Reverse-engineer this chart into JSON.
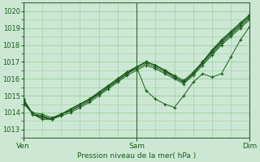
{
  "xlabel": "Pression niveau de la mer( hPa )",
  "bg_color": "#cce8d4",
  "plot_bg_color": "#cce8d4",
  "grid_color": "#99cc99",
  "line_color": "#1a5c1a",
  "marker_color": "#1a5c1a",
  "axis_color": "#336633",
  "tick_color": "#1a5c1a",
  "ylim": [
    1012.5,
    1020.5
  ],
  "yticks": [
    1013,
    1014,
    1015,
    1016,
    1017,
    1018,
    1019,
    1020
  ],
  "xtick_labels": [
    "Ven",
    "Sam",
    "Dim"
  ],
  "xtick_positions": [
    0.0,
    0.5,
    1.0
  ],
  "figsize": [
    3.2,
    2.0
  ],
  "dpi": 100,
  "series": [
    [
      1014.8,
      1013.9,
      1013.8,
      1013.6,
      1013.8,
      1014.0,
      1014.3,
      1014.6,
      1015.0,
      1015.4,
      1015.8,
      1016.2,
      1016.5,
      1016.8,
      1016.6,
      1016.3,
      1016.0,
      1015.7,
      1016.2,
      1016.8,
      1017.4,
      1018.0,
      1018.5,
      1019.0,
      1019.5
    ],
    [
      1014.8,
      1013.9,
      1013.8,
      1013.6,
      1013.9,
      1014.1,
      1014.4,
      1014.7,
      1015.1,
      1015.5,
      1015.9,
      1016.3,
      1016.6,
      1016.9,
      1016.7,
      1016.4,
      1016.1,
      1015.8,
      1016.3,
      1016.9,
      1017.5,
      1018.1,
      1018.6,
      1019.1,
      1019.6
    ],
    [
      1014.8,
      1013.9,
      1013.8,
      1013.6,
      1013.9,
      1014.1,
      1014.4,
      1014.7,
      1015.1,
      1015.5,
      1015.9,
      1016.3,
      1016.7,
      1017.0,
      1016.8,
      1016.5,
      1016.2,
      1015.9,
      1016.4,
      1017.0,
      1017.6,
      1018.2,
      1018.7,
      1019.2,
      1019.7
    ],
    [
      1014.7,
      1013.9,
      1013.7,
      1013.6,
      1013.9,
      1014.2,
      1014.5,
      1014.8,
      1015.2,
      1015.6,
      1016.0,
      1016.4,
      1016.7,
      1017.0,
      1016.8,
      1016.5,
      1016.1,
      1015.8,
      1016.3,
      1017.0,
      1017.6,
      1018.2,
      1018.7,
      1019.2,
      1019.7
    ],
    [
      1014.7,
      1013.9,
      1013.7,
      1013.6,
      1013.9,
      1014.2,
      1014.5,
      1014.8,
      1015.2,
      1015.6,
      1016.0,
      1016.4,
      1016.7,
      1017.0,
      1016.8,
      1016.5,
      1016.1,
      1015.8,
      1016.3,
      1017.0,
      1017.7,
      1018.3,
      1018.8,
      1019.3,
      1019.8
    ],
    [
      1014.6,
      1013.9,
      1013.6,
      1013.6,
      1013.9,
      1014.2,
      1014.5,
      1014.8,
      1015.2,
      1015.6,
      1016.0,
      1016.4,
      1016.7,
      1017.0,
      1016.8,
      1016.5,
      1016.1,
      1015.8,
      1016.3,
      1017.0,
      1017.7,
      1018.3,
      1018.8,
      1019.3,
      1019.8
    ],
    [
      1014.5,
      1014.0,
      1013.9,
      1013.7,
      1013.9,
      1014.2,
      1014.5,
      1014.8,
      1015.1,
      1015.5,
      1015.9,
      1016.3,
      1016.7,
      1015.3,
      1014.8,
      1014.5,
      1014.3,
      1015.0,
      1015.8,
      1016.3,
      1016.1,
      1016.3,
      1017.3,
      1018.3,
      1019.1
    ]
  ]
}
